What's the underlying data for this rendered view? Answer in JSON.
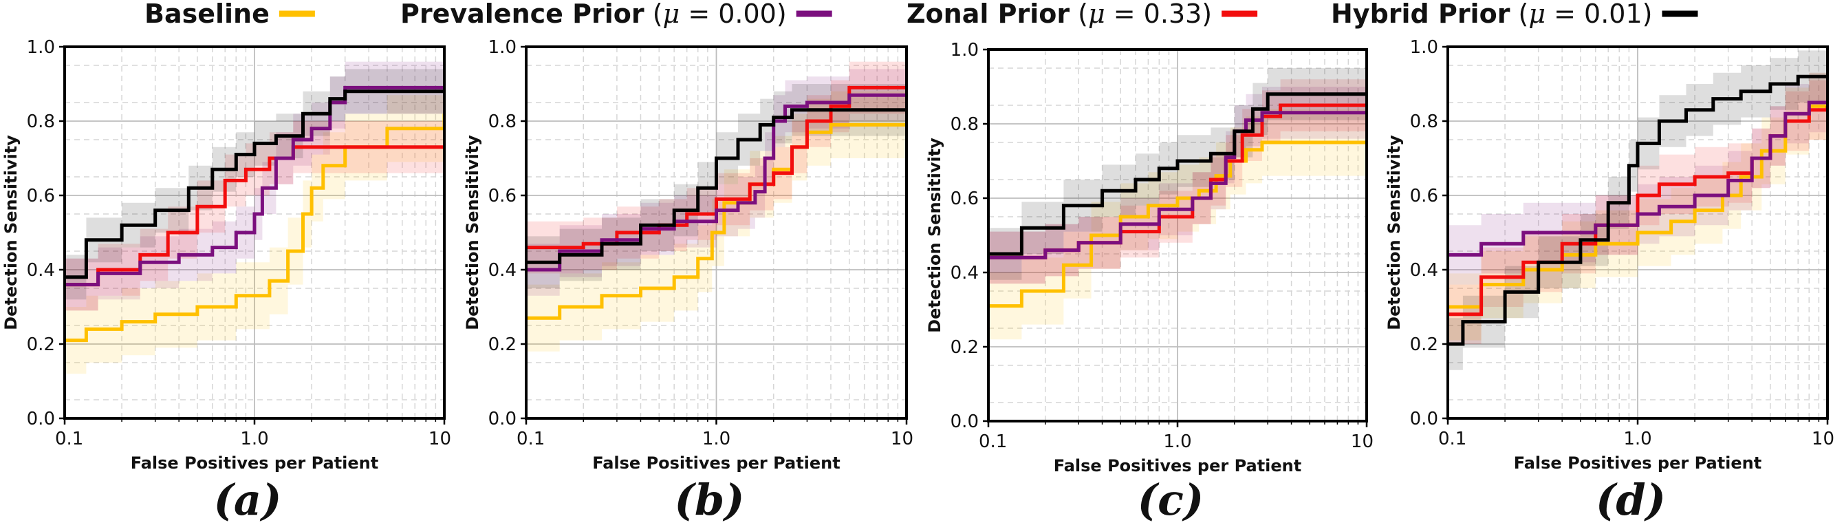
{
  "chart_data": {
    "type": "line",
    "figure": "FROC curves, four panels with shared legend",
    "legend": [
      {
        "name": "Baseline",
        "mu_label": "",
        "mu_value": "",
        "color": "#FFC000"
      },
      {
        "name": "Prevalence Prior",
        "mu_label": "μ",
        "mu_value": "= 0.00",
        "color": "#7B0F7E"
      },
      {
        "name": "Zonal Prior",
        "mu_label": "μ",
        "mu_value": "= 0.33",
        "color": "#F20D0D"
      },
      {
        "name": "Hybrid Prior",
        "mu_label": "μ",
        "mu_value": "= 0.01",
        "color": "#000000"
      }
    ],
    "xlabel": "False Positives per Patient",
    "ylabel": "Detection Sensitivity",
    "xscale": "log",
    "xlim": [
      0.1,
      10
    ],
    "ylim": [
      0.0,
      1.0
    ],
    "xticks": [
      0.1,
      1.0,
      10
    ],
    "xtick_labels": [
      "0.1",
      "1.0",
      "10"
    ],
    "yticks": [
      0.0,
      0.2,
      0.4,
      0.6,
      0.8,
      1.0
    ],
    "ytick_labels": [
      "0.0",
      "0.2",
      "0.4",
      "0.6",
      "0.8",
      "1.0"
    ],
    "grid": true,
    "panels": [
      {
        "label": "(a)",
        "series": [
          {
            "name": "Baseline",
            "band": 0.09,
            "x": [
              0.1,
              0.13,
              0.2,
              0.3,
              0.5,
              0.8,
              1.2,
              1.5,
              1.8,
              2.0,
              2.3,
              3.0,
              5.0,
              10
            ],
            "y": [
              0.21,
              0.24,
              0.26,
              0.28,
              0.3,
              0.33,
              0.37,
              0.45,
              0.55,
              0.62,
              0.68,
              0.73,
              0.78,
              0.82
            ]
          },
          {
            "name": "Prevalence Prior",
            "band": 0.07,
            "x": [
              0.1,
              0.15,
              0.25,
              0.4,
              0.6,
              0.8,
              1.0,
              1.1,
              1.3,
              1.6,
              2.0,
              2.5,
              3.0,
              10
            ],
            "y": [
              0.36,
              0.39,
              0.42,
              0.44,
              0.46,
              0.5,
              0.55,
              0.62,
              0.7,
              0.75,
              0.78,
              0.85,
              0.89,
              0.89
            ]
          },
          {
            "name": "Zonal Prior",
            "band": 0.07,
            "x": [
              0.1,
              0.15,
              0.25,
              0.35,
              0.5,
              0.7,
              0.9,
              1.2,
              1.6,
              10
            ],
            "y": [
              0.36,
              0.4,
              0.44,
              0.5,
              0.57,
              0.64,
              0.67,
              0.7,
              0.73,
              0.73
            ]
          },
          {
            "name": "Hybrid Prior",
            "band": 0.06,
            "x": [
              0.1,
              0.13,
              0.2,
              0.3,
              0.45,
              0.6,
              0.8,
              1.0,
              1.3,
              1.8,
              2.5,
              3.0,
              10
            ],
            "y": [
              0.38,
              0.48,
              0.52,
              0.56,
              0.62,
              0.67,
              0.71,
              0.74,
              0.76,
              0.82,
              0.86,
              0.88,
              0.88
            ]
          }
        ]
      },
      {
        "label": "(b)",
        "series": [
          {
            "name": "Baseline",
            "band": 0.09,
            "x": [
              0.1,
              0.15,
              0.25,
              0.4,
              0.6,
              0.8,
              0.95,
              1.1,
              1.5,
              2.0,
              2.5,
              3.0,
              4.0,
              10
            ],
            "y": [
              0.27,
              0.3,
              0.33,
              0.35,
              0.38,
              0.43,
              0.5,
              0.58,
              0.63,
              0.67,
              0.73,
              0.77,
              0.79,
              0.79
            ]
          },
          {
            "name": "Prevalence Prior",
            "band": 0.07,
            "x": [
              0.1,
              0.15,
              0.25,
              0.4,
              0.6,
              1.0,
              1.3,
              1.6,
              1.8,
              2.0,
              2.3,
              3.0,
              5.0,
              10
            ],
            "y": [
              0.4,
              0.45,
              0.48,
              0.51,
              0.53,
              0.56,
              0.58,
              0.61,
              0.7,
              0.8,
              0.84,
              0.85,
              0.87,
              0.87
            ]
          },
          {
            "name": "Zonal Prior",
            "band": 0.07,
            "x": [
              0.1,
              0.2,
              0.3,
              0.5,
              0.7,
              1.0,
              1.5,
              2.0,
              2.5,
              3.0,
              4.0,
              5.0,
              10
            ],
            "y": [
              0.46,
              0.47,
              0.5,
              0.52,
              0.55,
              0.59,
              0.63,
              0.66,
              0.73,
              0.8,
              0.84,
              0.89,
              0.89
            ]
          },
          {
            "name": "Hybrid Prior",
            "band": 0.07,
            "x": [
              0.1,
              0.15,
              0.25,
              0.4,
              0.6,
              0.8,
              1.0,
              1.3,
              1.7,
              2.0,
              2.5,
              3.0,
              10
            ],
            "y": [
              0.42,
              0.44,
              0.47,
              0.52,
              0.56,
              0.62,
              0.7,
              0.75,
              0.79,
              0.81,
              0.83,
              0.83,
              0.83
            ]
          }
        ]
      },
      {
        "label": "(c)",
        "series": [
          {
            "name": "Baseline",
            "band": 0.09,
            "x": [
              0.1,
              0.15,
              0.25,
              0.35,
              0.5,
              0.7,
              1.0,
              1.3,
              1.6,
              1.9,
              2.3,
              2.8,
              10
            ],
            "y": [
              0.31,
              0.35,
              0.42,
              0.5,
              0.55,
              0.58,
              0.6,
              0.62,
              0.66,
              0.7,
              0.73,
              0.75,
              0.75
            ]
          },
          {
            "name": "Prevalence Prior",
            "band": 0.07,
            "x": [
              0.1,
              0.2,
              0.3,
              0.5,
              0.8,
              1.2,
              1.5,
              1.8,
              2.0,
              2.3,
              2.8,
              10
            ],
            "y": [
              0.44,
              0.46,
              0.48,
              0.53,
              0.57,
              0.6,
              0.64,
              0.71,
              0.78,
              0.81,
              0.83,
              0.83
            ]
          },
          {
            "name": "Zonal Prior",
            "band": 0.07,
            "x": [
              0.1,
              0.2,
              0.3,
              0.5,
              0.8,
              1.2,
              1.5,
              1.8,
              2.2,
              2.8,
              3.5,
              10
            ],
            "y": [
              0.44,
              0.46,
              0.48,
              0.51,
              0.55,
              0.6,
              0.65,
              0.7,
              0.77,
              0.82,
              0.85,
              0.85
            ]
          },
          {
            "name": "Hybrid Prior",
            "band": 0.07,
            "x": [
              0.1,
              0.15,
              0.25,
              0.4,
              0.6,
              0.8,
              1.0,
              1.5,
              2.0,
              2.5,
              3.0,
              10
            ],
            "y": [
              0.45,
              0.52,
              0.58,
              0.62,
              0.65,
              0.68,
              0.7,
              0.72,
              0.78,
              0.84,
              0.88,
              0.88
            ]
          }
        ]
      },
      {
        "label": "(d)",
        "series": [
          {
            "name": "Baseline",
            "band": 0.09,
            "x": [
              0.1,
              0.15,
              0.25,
              0.4,
              0.6,
              1.0,
              1.5,
              2.0,
              2.8,
              3.5,
              4.5,
              6.0,
              8.0,
              10
            ],
            "y": [
              0.3,
              0.36,
              0.4,
              0.44,
              0.47,
              0.5,
              0.53,
              0.56,
              0.6,
              0.65,
              0.72,
              0.8,
              0.84,
              0.84
            ]
          },
          {
            "name": "Prevalence Prior",
            "band": 0.08,
            "x": [
              0.1,
              0.15,
              0.25,
              0.4,
              0.6,
              1.0,
              1.3,
              2.0,
              3.0,
              4.0,
              5.0,
              6.0,
              8.0,
              10
            ],
            "y": [
              0.44,
              0.47,
              0.5,
              0.5,
              0.52,
              0.55,
              0.57,
              0.6,
              0.64,
              0.7,
              0.76,
              0.82,
              0.85,
              0.85
            ]
          },
          {
            "name": "Zonal Prior",
            "band": 0.08,
            "x": [
              0.1,
              0.15,
              0.25,
              0.4,
              0.6,
              1.0,
              1.3,
              2.0,
              3.0,
              4.0,
              5.0,
              6.0,
              8.0,
              10
            ],
            "y": [
              0.28,
              0.38,
              0.42,
              0.47,
              0.52,
              0.6,
              0.63,
              0.65,
              0.66,
              0.7,
              0.76,
              0.8,
              0.83,
              0.84
            ]
          },
          {
            "name": "Hybrid Prior",
            "band": 0.07,
            "x": [
              0.1,
              0.12,
              0.2,
              0.3,
              0.5,
              0.7,
              0.9,
              1.0,
              1.3,
              1.8,
              2.5,
              3.5,
              5.0,
              7.0,
              10
            ],
            "y": [
              0.2,
              0.26,
              0.34,
              0.42,
              0.48,
              0.58,
              0.68,
              0.74,
              0.8,
              0.83,
              0.86,
              0.88,
              0.9,
              0.92,
              0.92
            ]
          }
        ]
      }
    ]
  }
}
